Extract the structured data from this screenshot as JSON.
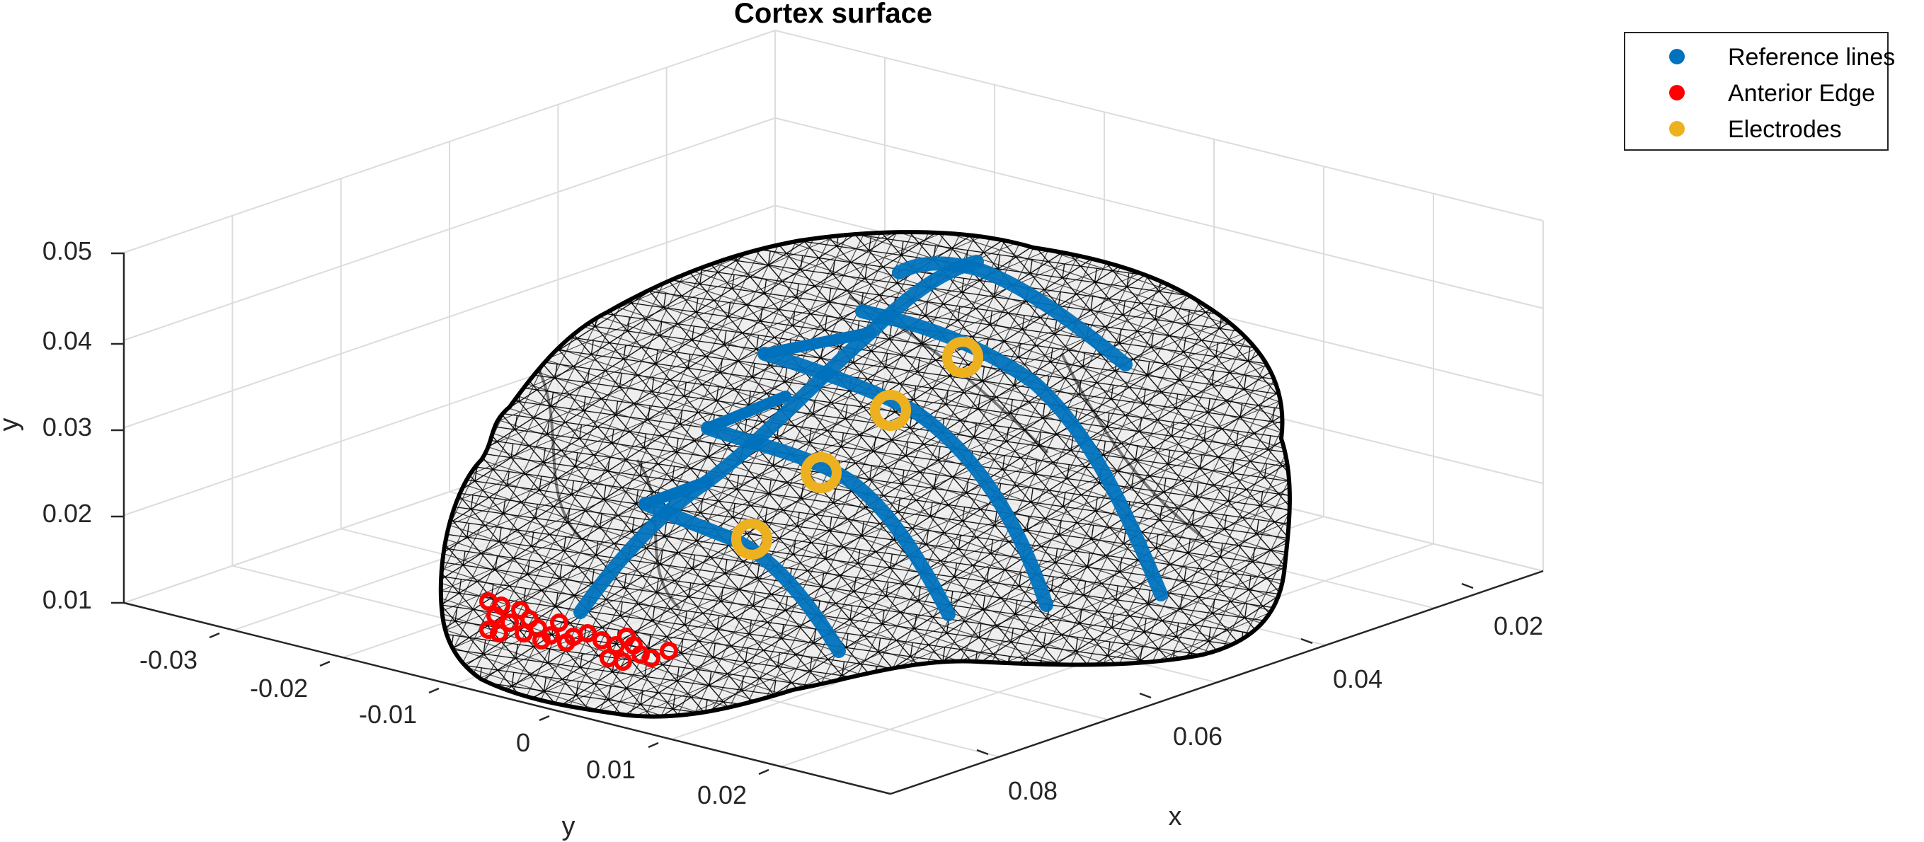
{
  "chart_data": {
    "type": "scatter",
    "title": "Cortex surface",
    "xlabel": "x",
    "ylabel": "y",
    "zlabel": "y",
    "x_ticks": [
      "0.02",
      "0.04",
      "0.06",
      "0.08"
    ],
    "y_ticks": [
      "-0.03",
      "-0.02",
      "-0.01",
      "0",
      "0.01",
      "0.02"
    ],
    "z_ticks": [
      "0.01",
      "0.02",
      "0.03",
      "0.04",
      "0.05"
    ],
    "grid": true,
    "legend_position": "top-right",
    "legend": [
      {
        "name": "Reference lines",
        "color": "#0072BD"
      },
      {
        "name": "Anterior Edge",
        "color": "#FF0000"
      },
      {
        "name": "Electrodes",
        "color": "#EDB120"
      }
    ],
    "mesh_color": "#000000",
    "surface_fill": "#e6e6e6"
  }
}
